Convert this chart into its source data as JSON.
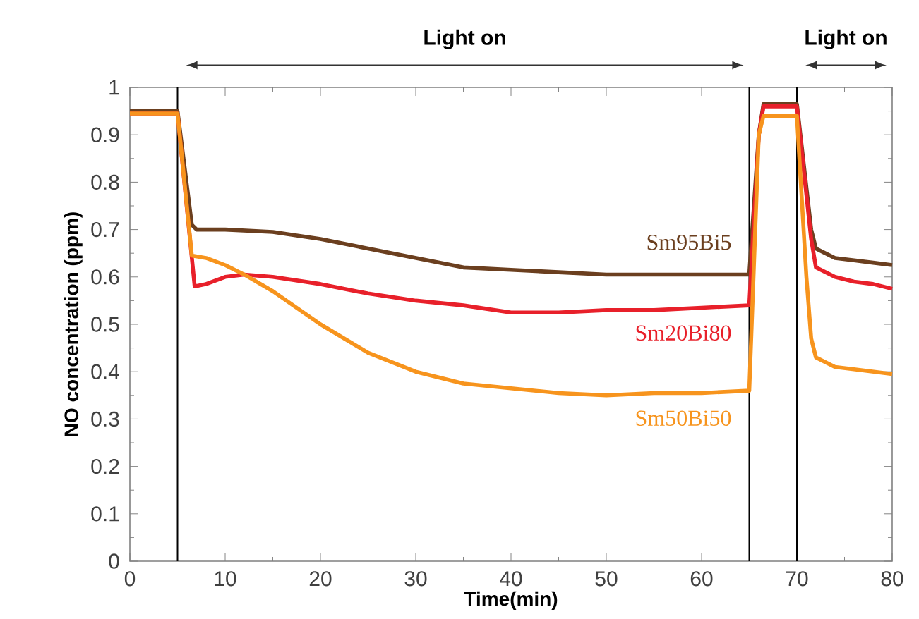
{
  "chart_data": {
    "type": "line",
    "xlabel": "Time(min)",
    "ylabel": "NO concentration  (ppm)",
    "xlim": [
      0,
      80
    ],
    "ylim": [
      0,
      1
    ],
    "xticks": [
      0,
      10,
      20,
      30,
      40,
      50,
      60,
      70,
      80
    ],
    "yticks": [
      0,
      0.1,
      0.2,
      0.3,
      0.4,
      0.5,
      0.6,
      0.7,
      0.8,
      0.9,
      1
    ],
    "marker": "none",
    "line_style": "solid",
    "ref_lines": [
      {
        "axis": "x",
        "value": 5,
        "color": "#000000"
      },
      {
        "axis": "x",
        "value": 65,
        "color": "#000000"
      },
      {
        "axis": "x",
        "value": 70,
        "color": "#000000"
      }
    ],
    "annotations": [
      "Light on",
      "Light on"
    ],
    "series": [
      {
        "name": "Sm95Bi5",
        "color": "#6b3f1f",
        "x": [
          0,
          5,
          6.5,
          7,
          10,
          15,
          20,
          25,
          30,
          35,
          40,
          45,
          50,
          55,
          60,
          65,
          66,
          66.5,
          70,
          71.5,
          72,
          74,
          76,
          78,
          80
        ],
        "values": [
          0.95,
          0.95,
          0.71,
          0.7,
          0.7,
          0.695,
          0.68,
          0.66,
          0.64,
          0.62,
          0.615,
          0.61,
          0.605,
          0.605,
          0.605,
          0.605,
          0.9,
          0.965,
          0.965,
          0.7,
          0.66,
          0.64,
          0.635,
          0.63,
          0.625
        ]
      },
      {
        "name": "Sm20Bi80",
        "color": "#e8202a",
        "x": [
          0,
          5,
          6.8,
          8,
          10,
          12,
          15,
          20,
          25,
          30,
          35,
          40,
          45,
          50,
          55,
          60,
          65,
          66,
          66.5,
          70,
          71.5,
          72,
          74,
          76,
          78,
          80
        ],
        "values": [
          0.945,
          0.945,
          0.58,
          0.585,
          0.6,
          0.605,
          0.6,
          0.585,
          0.565,
          0.55,
          0.54,
          0.525,
          0.525,
          0.53,
          0.53,
          0.535,
          0.54,
          0.9,
          0.96,
          0.96,
          0.68,
          0.62,
          0.6,
          0.59,
          0.585,
          0.575
        ]
      },
      {
        "name": "Sm50Bi50",
        "color": "#f7941d",
        "x": [
          0,
          5,
          6.5,
          8,
          10,
          12,
          15,
          20,
          25,
          30,
          35,
          40,
          45,
          50,
          55,
          60,
          65,
          66,
          66.5,
          70,
          71,
          71.5,
          72,
          74,
          76,
          80
        ],
        "values": [
          0.945,
          0.945,
          0.645,
          0.64,
          0.625,
          0.605,
          0.57,
          0.5,
          0.44,
          0.4,
          0.375,
          0.365,
          0.355,
          0.35,
          0.355,
          0.355,
          0.36,
          0.9,
          0.94,
          0.94,
          0.6,
          0.47,
          0.43,
          0.41,
          0.405,
          0.395
        ]
      }
    ]
  }
}
